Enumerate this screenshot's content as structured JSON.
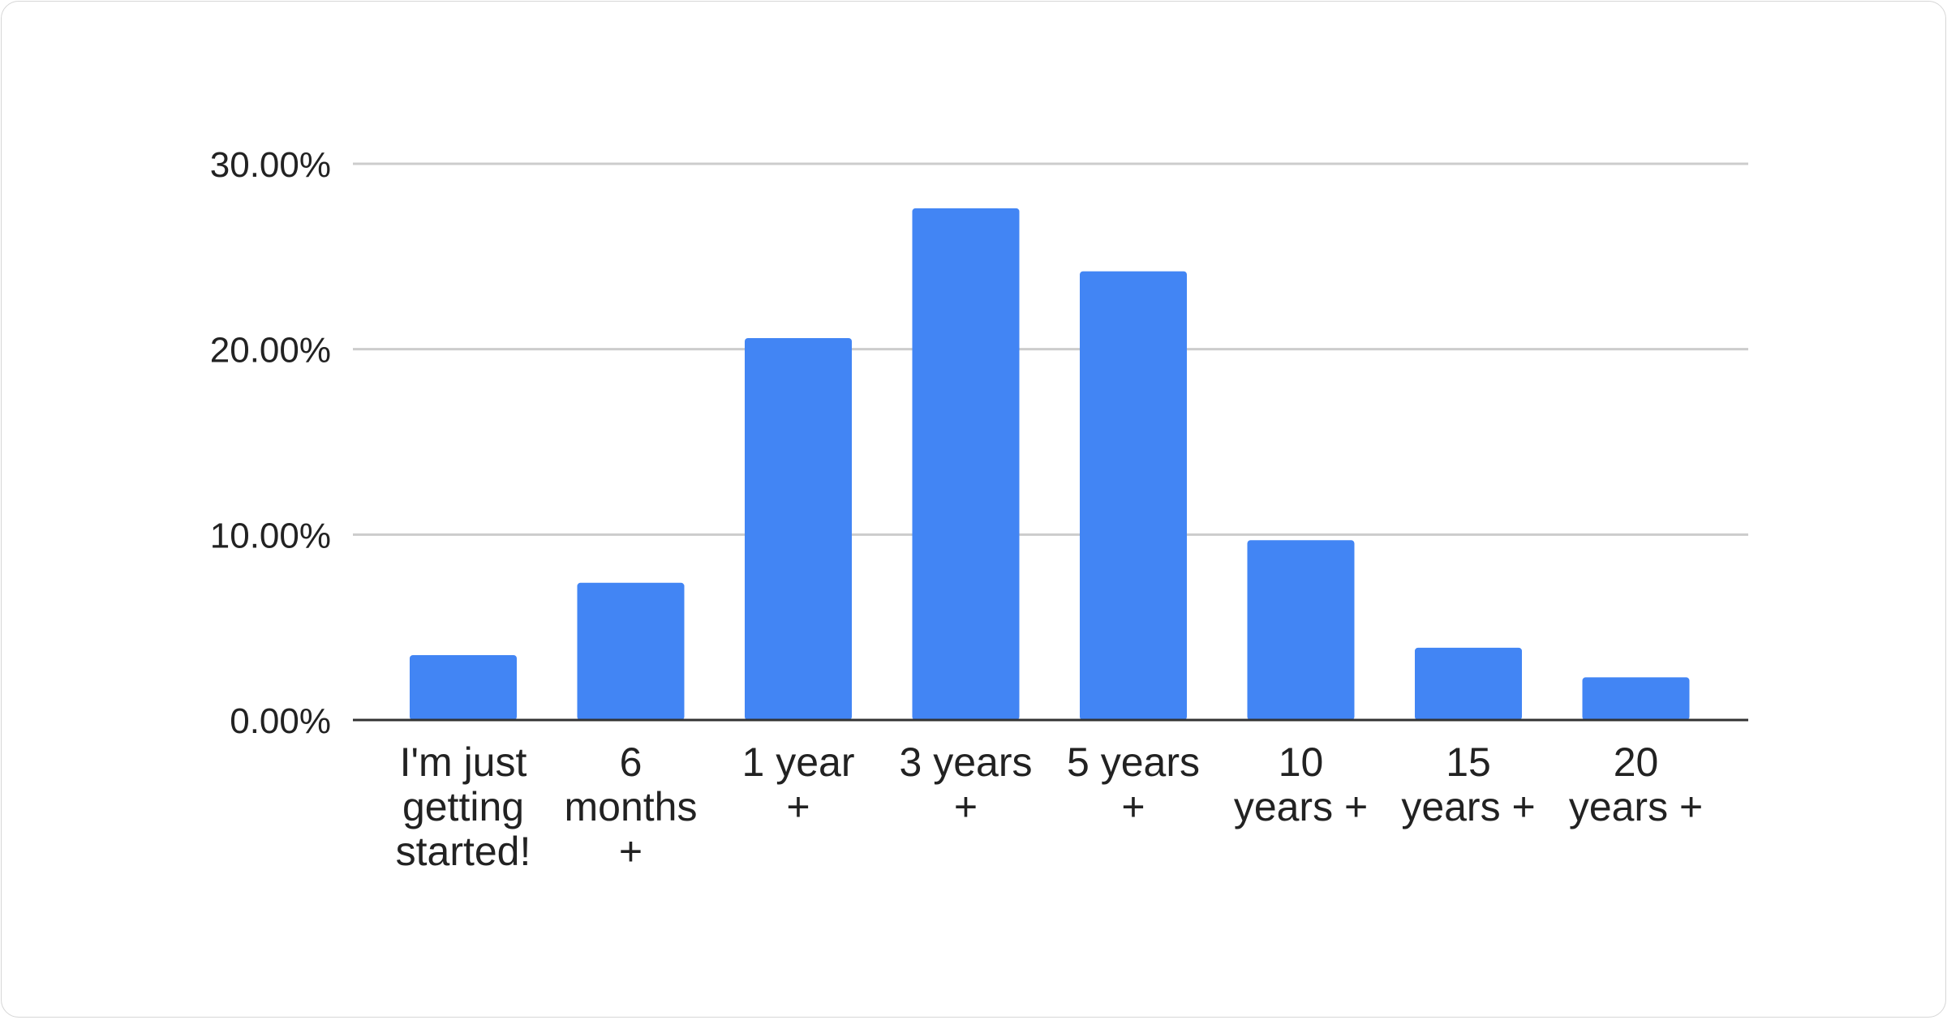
{
  "chart_data": {
    "type": "bar",
    "categories": [
      [
        "I'm just",
        "getting",
        "started!"
      ],
      [
        "6",
        "months",
        "+"
      ],
      [
        "1 year",
        "+"
      ],
      [
        "3 years",
        "+"
      ],
      [
        "5 years",
        "+"
      ],
      [
        "10",
        "years +"
      ],
      [
        "15",
        "years +"
      ],
      [
        "20",
        "years +"
      ]
    ],
    "values": [
      3.5,
      7.4,
      20.6,
      27.6,
      24.2,
      9.7,
      3.9,
      2.3
    ],
    "yticks": [
      "0.00%",
      "10.00%",
      "20.00%",
      "30.00%"
    ],
    "ylim": [
      0,
      30
    ],
    "grid": true,
    "bar_color": "#4285f4",
    "title": "",
    "xlabel": "",
    "ylabel": ""
  }
}
